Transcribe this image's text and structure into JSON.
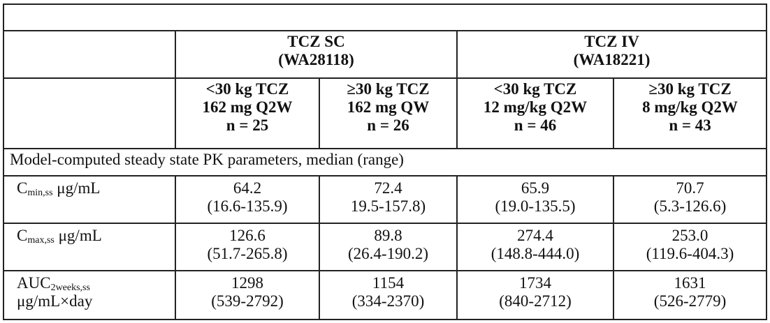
{
  "groups": [
    {
      "title": "TCZ SC",
      "study": "(WA28118)"
    },
    {
      "title": "TCZ IV",
      "study": "(WA18221)"
    }
  ],
  "arms": [
    {
      "weight": "<30 kg TCZ",
      "dose": "162 mg Q2W",
      "n": "n = 25"
    },
    {
      "weight": "≥30 kg TCZ",
      "dose": "162 mg QW",
      "n": "n = 26"
    },
    {
      "weight": "<30 kg TCZ",
      "dose": "12 mg/kg Q2W",
      "n": "n = 46"
    },
    {
      "weight": "≥30 kg TCZ",
      "dose": "8 mg/kg Q2W",
      "n": "n = 43"
    }
  ],
  "section_title": "Model-computed steady state PK parameters, median (range)",
  "rows": [
    {
      "label_main": "C",
      "label_sub": "min,ss",
      "label_unit": " μg/mL",
      "cells": [
        {
          "median": "64.2",
          "range": "(16.6-135.9)"
        },
        {
          "median": "72.4",
          "range": "19.5-157.8)"
        },
        {
          "median": "65.9",
          "range": "(19.0-135.5)"
        },
        {
          "median": "70.7",
          "range": "(5.3-126.6)"
        }
      ]
    },
    {
      "label_main": "C",
      "label_sub": "max,ss",
      "label_unit": " μg/mL",
      "cells": [
        {
          "median": "126.6",
          "range": "(51.7-265.8)"
        },
        {
          "median": "89.8",
          "range": "(26.4-190.2)"
        },
        {
          "median": "274.4",
          "range": "(148.8-444.0)"
        },
        {
          "median": "253.0",
          "range": "(119.6-404.3)"
        }
      ]
    },
    {
      "label_main": "AUC",
      "label_sub": "2weeks,ss",
      "label_unit": "μg/mL×day",
      "cells": [
        {
          "median": "1298",
          "range": "(539-2792)"
        },
        {
          "median": "1154",
          "range": "(334-2370)"
        },
        {
          "median": "1734",
          "range": "(840-2712)"
        },
        {
          "median": "1631",
          "range": "(526-2779)"
        }
      ]
    }
  ]
}
